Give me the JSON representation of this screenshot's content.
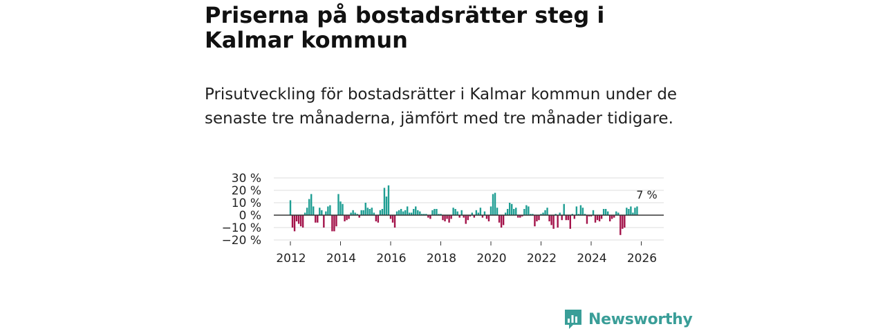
{
  "title": "Priserna på bostadsrätter steg i Kalmar kommun",
  "subtitle": "Prisutveckling för bostadsrätter i Kalmar kommun under de senaste tre månaderna, jämfört med tre månader tidigare.",
  "brand": {
    "name": "Newsworthy",
    "logo_icon": "newsworthy-chart-logo-icon"
  },
  "colors": {
    "positive": "#1f9e93",
    "negative": "#a3134a",
    "zero_line": "#333333",
    "grid": "#dcdcdc",
    "brand": "#3a9e98"
  },
  "chart_data": {
    "type": "bar",
    "title": "Priserna på bostadsrätter steg i Kalmar kommun",
    "xlabel": "",
    "ylabel": "",
    "ylim": [
      -20,
      30
    ],
    "y_ticks": [
      -20,
      -10,
      0,
      10,
      20,
      30
    ],
    "y_tick_labels": [
      "−20 %",
      "−10 %",
      "0 %",
      "10 %",
      "20 %",
      "30 %"
    ],
    "x_ticks": [
      2012,
      2014,
      2016,
      2018,
      2020,
      2022,
      2024,
      2026
    ],
    "x_tick_labels": [
      "2012",
      "2014",
      "2016",
      "2018",
      "2020",
      "2022",
      "2024",
      "2026"
    ],
    "start": "2012-01",
    "frequency": "monthly",
    "values": [
      12,
      -10,
      -13,
      -5,
      -7,
      -9,
      -10,
      2,
      6,
      13,
      17,
      7,
      -6,
      -6,
      6,
      4,
      -10,
      3,
      7,
      8,
      -13,
      -13,
      -9,
      17,
      11,
      9,
      -5,
      -4,
      -3,
      2,
      4,
      2,
      1,
      -2,
      4,
      4,
      10,
      6,
      5,
      6,
      2,
      -5,
      -6,
      4,
      5,
      22,
      15,
      24,
      -3,
      -6,
      -10,
      3,
      4,
      5,
      3,
      4,
      7,
      2,
      2,
      5,
      7,
      4,
      3,
      1,
      1,
      1,
      -2,
      -3,
      4,
      5,
      5,
      1,
      1,
      -4,
      -5,
      -3,
      -6,
      -3,
      6,
      5,
      3,
      -2,
      4,
      -2,
      -7,
      -4,
      -1,
      2,
      -2,
      4,
      2,
      6,
      -2,
      3,
      -3,
      -5,
      7,
      17,
      18,
      6,
      -6,
      -10,
      -8,
      2,
      5,
      10,
      9,
      5,
      6,
      -2,
      -2,
      -1,
      5,
      8,
      7,
      1,
      1,
      -9,
      -5,
      -4,
      1,
      2,
      4,
      6,
      -5,
      -8,
      -11,
      1,
      -10,
      2,
      -4,
      9,
      -4,
      -4,
      -11,
      1,
      -3,
      7,
      1,
      8,
      6,
      1,
      -7,
      -1,
      -1,
      4,
      -6,
      -4,
      -5,
      -3,
      5,
      5,
      3,
      -5,
      -3,
      -2,
      3,
      2,
      -16,
      -11,
      -10,
      6,
      5,
      7,
      2,
      6,
      7
    ],
    "annotation": {
      "label": "7 %",
      "target": "last"
    }
  }
}
